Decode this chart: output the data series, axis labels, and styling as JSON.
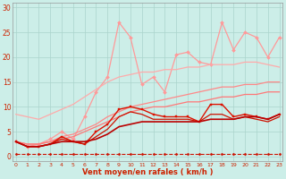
{
  "xlabel": "Vent moyen/en rafales ( km/h )",
  "bg_color": "#cceee8",
  "grid_color": "#aad4cc",
  "text_color": "#cc2200",
  "x": [
    0,
    1,
    2,
    3,
    4,
    5,
    6,
    7,
    8,
    9,
    10,
    11,
    12,
    13,
    14,
    15,
    16,
    17,
    18,
    19,
    20,
    21,
    22,
    23
  ],
  "ylim": [
    -1,
    31
  ],
  "xlim": [
    -0.3,
    23.3
  ],
  "yticks": [
    0,
    5,
    10,
    15,
    20,
    25,
    30
  ],
  "lines": [
    {
      "y": [
        3,
        2,
        2.5,
        3.5,
        5,
        3.5,
        8,
        13,
        16,
        27,
        24,
        14.5,
        16,
        13,
        20.5,
        21,
        19,
        18.5,
        27,
        21.5,
        25,
        24,
        20,
        24
      ],
      "color": "#ff9999",
      "lw": 0.9,
      "marker": "D",
      "ms": 2.0,
      "linestyle": "-"
    },
    {
      "y": [
        8.5,
        8.0,
        7.5,
        8.5,
        9.5,
        10.5,
        12,
        13.5,
        15,
        16,
        16.5,
        17,
        17,
        17.5,
        17.5,
        18,
        18,
        18.5,
        18.5,
        18.5,
        19,
        19,
        18.5,
        18
      ],
      "color": "#ffaaaa",
      "lw": 0.9,
      "marker": null,
      "ms": 0,
      "linestyle": "-"
    },
    {
      "y": [
        3,
        2.5,
        2.5,
        3,
        4,
        4.5,
        5.5,
        6.5,
        8,
        9,
        10,
        10.5,
        11,
        11.5,
        12,
        12.5,
        13,
        13.5,
        14,
        14,
        14.5,
        14.5,
        15,
        15
      ],
      "color": "#ff8888",
      "lw": 0.9,
      "marker": null,
      "ms": 0,
      "linestyle": "-"
    },
    {
      "y": [
        3,
        2.5,
        2.5,
        3,
        3.5,
        4,
        5,
        6,
        7,
        8,
        9,
        9.5,
        10,
        10,
        10.5,
        11,
        11,
        11.5,
        12,
        12,
        12.5,
        12.5,
        13,
        13
      ],
      "color": "#ff7777",
      "lw": 0.9,
      "marker": null,
      "ms": 0,
      "linestyle": "-"
    },
    {
      "y": [
        3,
        2,
        2,
        2.5,
        4,
        3,
        2.5,
        5,
        6.5,
        9.5,
        10,
        9.5,
        8.5,
        8,
        8,
        8,
        7,
        10.5,
        10.5,
        8,
        8.5,
        8,
        7.5,
        8.5
      ],
      "color": "#dd1100",
      "lw": 1.0,
      "marker": "s",
      "ms": 2.0,
      "linestyle": "-"
    },
    {
      "y": [
        3,
        2,
        2,
        2.5,
        3.5,
        3,
        2.5,
        4,
        5.5,
        8,
        9,
        8.5,
        7.5,
        7.5,
        7.5,
        7.5,
        7,
        8.5,
        8.5,
        7.5,
        8,
        7.5,
        7,
        8
      ],
      "color": "#cc1100",
      "lw": 0.9,
      "marker": null,
      "ms": 0,
      "linestyle": "-"
    },
    {
      "y": [
        3,
        2,
        2,
        2.5,
        3,
        3,
        3,
        3.5,
        4.5,
        6,
        6.5,
        7,
        7,
        7,
        7,
        7,
        7,
        7.5,
        7.5,
        7.5,
        8,
        8,
        7.5,
        8.5
      ],
      "color": "#bb0000",
      "lw": 1.2,
      "marker": null,
      "ms": 0,
      "linestyle": "-"
    },
    {
      "y": [
        0.5,
        0.5,
        0.5,
        0.5,
        0.5,
        0.5,
        0.5,
        0.5,
        0.5,
        0.5,
        0.5,
        0.5,
        0.5,
        0.5,
        0.5,
        0.5,
        0.5,
        0.5,
        0.5,
        0.5,
        0.5,
        0.5,
        0.5,
        0.5
      ],
      "color": "#cc1100",
      "lw": 0.8,
      "marker": "D",
      "ms": 1.5,
      "linestyle": "--"
    }
  ]
}
